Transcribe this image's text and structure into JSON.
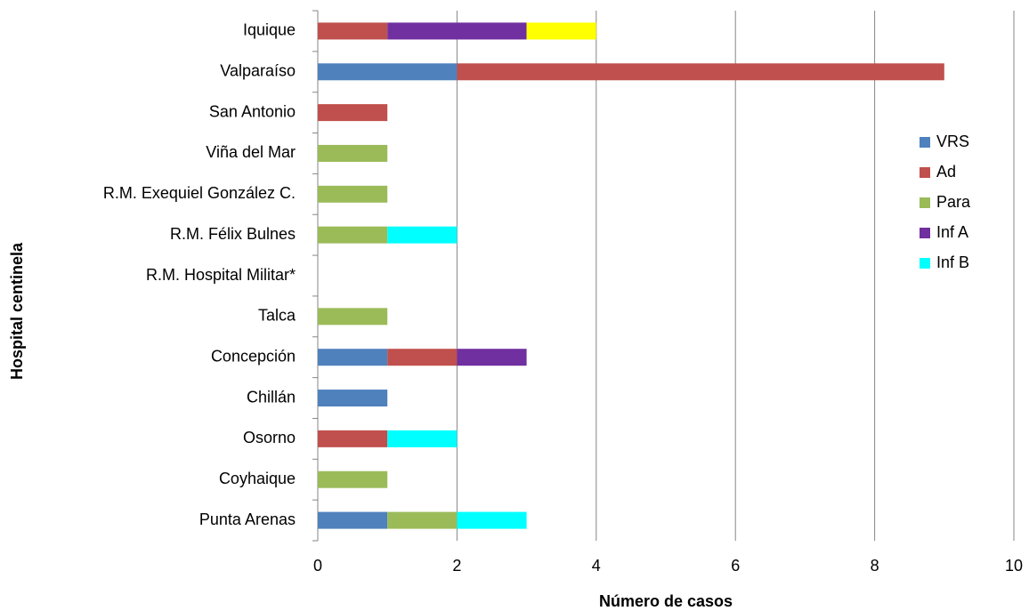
{
  "chart_data": {
    "type": "stacked-bar-horizontal",
    "x_label": "Número de casos",
    "y_label": "Hospital centinela",
    "categories": [
      "Iquique",
      "Valparaíso",
      "San Antonio",
      "Viña del Mar",
      "R.M. Exequiel González C.",
      "R.M. Félix Bulnes",
      "R.M. Hospital Militar*",
      "Talca",
      "Concepción",
      "Chillán",
      "Osorno",
      "Coyhaique",
      "Punta Arenas"
    ],
    "series": [
      {
        "name": "VRS",
        "color": "#4f81bd",
        "values": [
          0,
          2,
          0,
          0,
          0,
          0,
          0,
          0,
          1,
          1,
          0,
          0,
          1
        ]
      },
      {
        "name": "Ad",
        "color": "#c0504d",
        "values": [
          1,
          7,
          1,
          0,
          0,
          0,
          0,
          0,
          1,
          0,
          1,
          0,
          0
        ]
      },
      {
        "name": "Para",
        "color": "#9bbb59",
        "values": [
          0,
          0,
          0,
          1,
          1,
          1,
          0,
          1,
          0,
          0,
          0,
          1,
          1
        ]
      },
      {
        "name": "Inf A",
        "color": "#7030a0",
        "values": [
          2,
          0,
          0,
          0,
          0,
          0,
          0,
          0,
          1,
          0,
          0,
          0,
          0
        ]
      },
      {
        "name": "Inf B",
        "color": "#00ffff",
        "values": [
          0,
          0,
          0,
          0,
          0,
          1,
          0,
          0,
          0,
          0,
          1,
          0,
          1
        ]
      },
      {
        "color": "#ffff00",
        "values": [
          1,
          0,
          0,
          0,
          0,
          0,
          0,
          0,
          0,
          0,
          0,
          0,
          0
        ]
      }
    ],
    "xlim": [
      0,
      10
    ],
    "xticks": [
      0,
      2,
      4,
      6,
      8,
      10
    ],
    "grid": true,
    "legend": "right"
  }
}
